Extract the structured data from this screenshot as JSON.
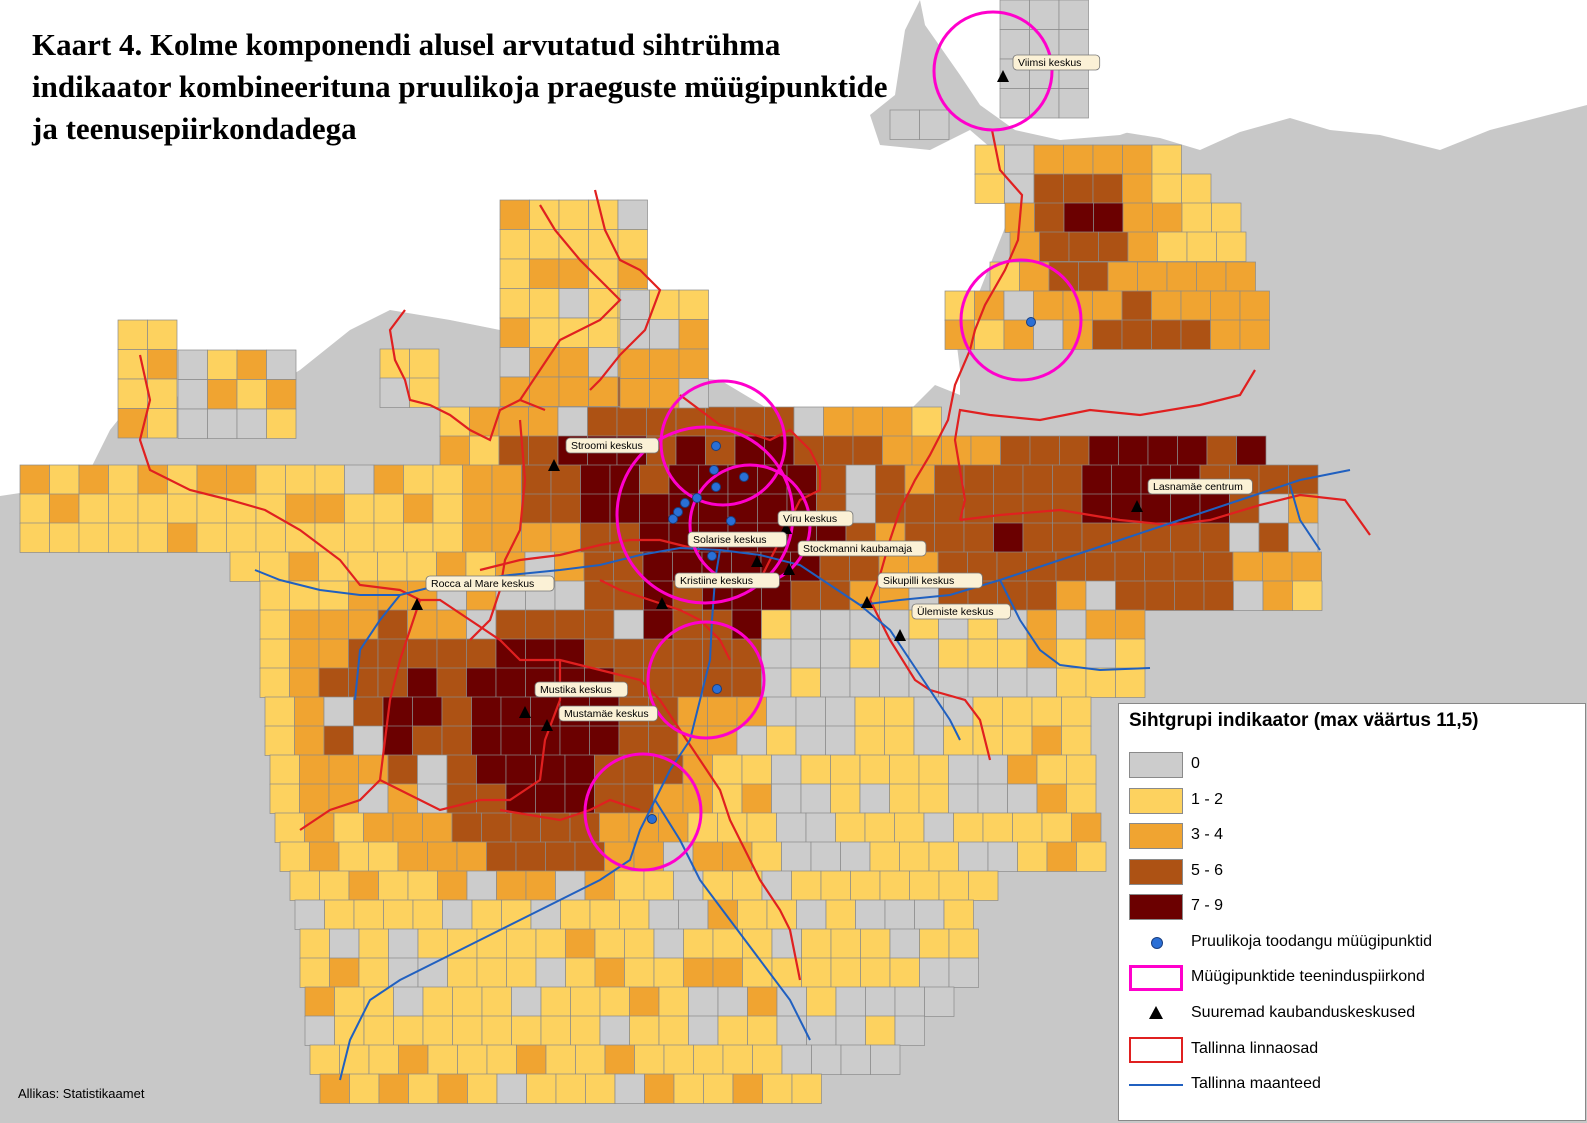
{
  "title": "Kaart 4. Kolme komponendi alusel arvutatud sihtrühma indikaator kombineerituna pruulikoja praeguste müügipunktide ja teenusepiirkondadega",
  "source": "Allikas: Statistikaamet",
  "colors": {
    "sea": "#c8c8c8",
    "land_outside": "#ffffff",
    "class_0": "#cccccc",
    "class_1_2": "#fdd25f",
    "class_3_4": "#f0a431",
    "class_5_6": "#ad5214",
    "class_7_9": "#6b0000",
    "grid_line": "#8a8a8a",
    "district_border": "#e02020",
    "roads": "#2060c0",
    "service_area": "#ff00cc",
    "sales_point": "#2a6fd6"
  },
  "legend": {
    "title": "Sihtgrupi indikaator (max väärtus 11,5)",
    "classes": [
      {
        "label": "0",
        "color_key": "class_0"
      },
      {
        "label": "1 - 2",
        "color_key": "class_1_2"
      },
      {
        "label": "3 - 4",
        "color_key": "class_3_4"
      },
      {
        "label": "5 - 6",
        "color_key": "class_5_6"
      },
      {
        "label": "7 - 9",
        "color_key": "class_7_9"
      }
    ],
    "symbols": {
      "sales_points": "Pruulikoja toodangu müügipunktid",
      "service_areas": "Müügipunktide teeninduspiirkond",
      "shopping_centres": "Suuremad kaubanduskeskused",
      "districts": "Tallinna linnaosad",
      "roads": "Tallinna maanteed"
    }
  },
  "shopping_centres": [
    {
      "name": "Viimsi keskus"
    },
    {
      "name": "Stroomi keskus"
    },
    {
      "name": "Viru keskus"
    },
    {
      "name": "Solarise keskus"
    },
    {
      "name": "Stockmanni kaubamaja"
    },
    {
      "name": "Kristiine keskus"
    },
    {
      "name": "Sikupilli keskus"
    },
    {
      "name": "Ülemiste keskus"
    },
    {
      "name": "Rocca al Mare keskus"
    },
    {
      "name": "Mustika keskus"
    },
    {
      "name": "Mustamäe keskus"
    },
    {
      "name": "Lasnamäe centrum"
    }
  ]
}
